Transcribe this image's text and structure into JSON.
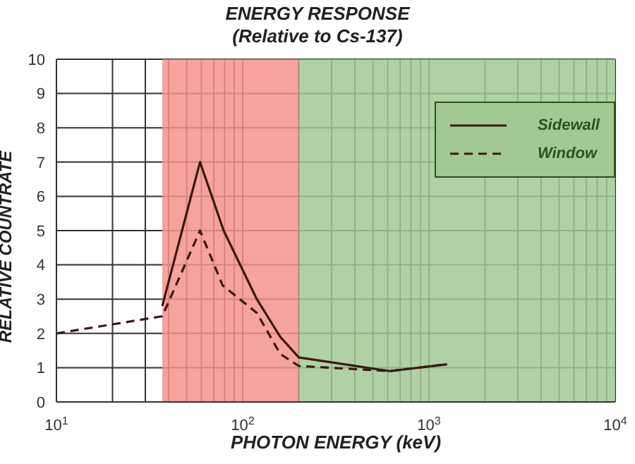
{
  "chart_data": {
    "type": "line",
    "title": "ENERGY RESPONSE",
    "subtitle": "(Relative to Cs-137)",
    "xlabel": "PHOTON ENERGY (keV)",
    "ylabel": "RELATIVE COUNTRATE",
    "log": "x",
    "xlim": [
      10,
      10000
    ],
    "xticks": [
      {
        "value": 10,
        "label": "10$^{1}$"
      },
      {
        "value": 20,
        "label": null
      },
      {
        "value": 30,
        "label": null
      },
      {
        "value": 40,
        "label": null
      },
      {
        "value": 50,
        "label": null
      },
      {
        "value": 60,
        "label": null
      },
      {
        "value": 70,
        "label": null
      },
      {
        "value": 80,
        "label": null
      },
      {
        "value": 90,
        "label": null
      },
      {
        "value": 100,
        "label": "10$^{2}$"
      },
      {
        "value": 200,
        "label": null
      },
      {
        "value": 300,
        "label": null
      },
      {
        "value": 400,
        "label": null
      },
      {
        "value": 500,
        "label": null
      },
      {
        "value": 600,
        "label": null
      },
      {
        "value": 700,
        "label": null
      },
      {
        "value": 800,
        "label": null
      },
      {
        "value": 900,
        "label": null
      },
      {
        "value": 1000,
        "label": "10$^{3}$"
      },
      {
        "value": 2000,
        "label": null
      },
      {
        "value": 3000,
        "label": null
      },
      {
        "value": 4000,
        "label": null
      },
      {
        "value": 5000,
        "label": null
      },
      {
        "value": 6000,
        "label": null
      },
      {
        "value": 7000,
        "label": null
      },
      {
        "value": 8000,
        "label": null
      },
      {
        "value": 9000,
        "label": null
      },
      {
        "value": 10000,
        "label": "10$^{4}$"
      }
    ],
    "ylim": [
      0,
      10
    ],
    "yticks": [
      0,
      1,
      2,
      3,
      4,
      5,
      6,
      7,
      8,
      9,
      10
    ],
    "grid": true,
    "legend": "top right",
    "marker": "none",
    "bands": [
      {
        "axis": "x",
        "from": 37,
        "to": 200,
        "color": "#f4928c"
      },
      {
        "axis": "x",
        "from": 200,
        "to": 10000,
        "color": "#a2c994"
      }
    ],
    "series": [
      {
        "name": "Sidewall",
        "color": "#3a1a12",
        "line_style": "solid",
        "x": [
          37,
          59,
          79,
          119,
          159,
          200,
          616,
          1250
        ],
        "values": [
          2.8,
          7,
          5,
          3,
          1.9,
          1.3,
          0.9,
          1.1
        ]
      },
      {
        "name": "Window",
        "color": "#3a1a12",
        "line_style": "dashed",
        "x": [
          10,
          37,
          59,
          78,
          119,
          159,
          200,
          616,
          1250
        ],
        "values": [
          2,
          2.5,
          5,
          3.4,
          2.6,
          1.4,
          1.05,
          0.9,
          1.1
        ]
      }
    ]
  }
}
